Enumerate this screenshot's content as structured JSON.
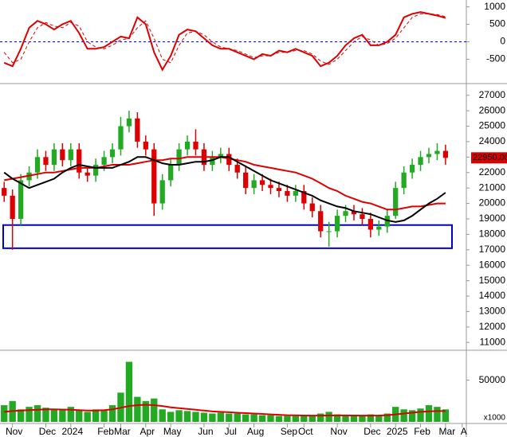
{
  "chart_data": [
    {
      "type": "line",
      "ylim": [
        -1150,
        1150
      ],
      "yticks": [
        1000,
        500,
        0,
        -500
      ],
      "zero_line": {
        "value": 0,
        "color": "#0000ff"
      },
      "series": [
        {
          "color": "#dd0000",
          "style": "solid",
          "values": [
            -600,
            -700,
            -200,
            400,
            600,
            500,
            350,
            500,
            600,
            250,
            -200,
            -200,
            -150,
            0,
            150,
            100,
            700,
            500,
            -300,
            -800,
            -400,
            200,
            350,
            300,
            100,
            -100,
            -200,
            -200,
            -300,
            -400,
            -500,
            -350,
            -400,
            -250,
            -300,
            -200,
            -300,
            -400,
            -700,
            -600,
            -400,
            -100,
            100,
            200,
            -100,
            -100,
            0,
            200,
            700,
            800,
            850,
            800,
            750,
            680,
            null,
            null
          ]
        },
        {
          "color": "#dd0000",
          "style": "dashed",
          "values": [
            -300,
            -600,
            -500,
            0,
            400,
            550,
            450,
            400,
            550,
            450,
            0,
            -150,
            -200,
            -100,
            50,
            100,
            400,
            600,
            100,
            -500,
            -600,
            -100,
            250,
            300,
            200,
            0,
            -150,
            -200,
            -250,
            -350,
            -450,
            -400,
            -400,
            -300,
            -300,
            -250,
            -250,
            -350,
            -550,
            -650,
            -500,
            -250,
            0,
            150,
            50,
            -100,
            -50,
            100,
            400,
            700,
            800,
            800,
            780,
            720,
            null,
            null
          ]
        }
      ]
    },
    {
      "type": "candlestick",
      "ylim": [
        10600,
        27500
      ],
      "yticks": [
        27000,
        26000,
        25000,
        24000,
        23000,
        22000,
        21000,
        20000,
        19000,
        18000,
        17000,
        16000,
        15000,
        14000,
        13000,
        12000,
        11000
      ],
      "up_color": "#22aa22",
      "down_color": "#dd0000",
      "open": [
        21000,
        20500,
        19000,
        21500,
        22000,
        23000,
        22500,
        23500,
        22800,
        23500,
        22000,
        21800,
        22500,
        23000,
        23500,
        25000,
        25500,
        24000,
        23500,
        20000,
        21500,
        22500,
        23500,
        24000,
        23500,
        22500,
        23000,
        23200,
        22500,
        22000,
        21000,
        21500,
        21200,
        21000,
        20800,
        20500,
        20800,
        20000,
        19500,
        18200,
        18200,
        19200,
        19500,
        19300,
        19000,
        18300,
        18500,
        19200,
        21000,
        22000,
        22500,
        23000,
        23200,
        23400,
        null,
        null
      ],
      "high": [
        21400,
        20900,
        21900,
        22400,
        23500,
        23400,
        23900,
        23900,
        23900,
        23900,
        22400,
        22900,
        23400,
        23900,
        25600,
        26000,
        25900,
        24400,
        23900,
        21900,
        22900,
        23900,
        24400,
        24800,
        23900,
        23400,
        23600,
        23600,
        22900,
        22400,
        21900,
        21900,
        21600,
        21400,
        21200,
        21200,
        21200,
        20400,
        19900,
        18800,
        19600,
        19900,
        19900,
        19700,
        19400,
        18900,
        19600,
        21400,
        22400,
        22900,
        23400,
        23600,
        23900,
        23800,
        null,
        null
      ],
      "low": [
        20100,
        17000,
        18600,
        21100,
        21600,
        22100,
        22100,
        22400,
        22400,
        21600,
        21400,
        21400,
        22100,
        22600,
        23100,
        24600,
        23600,
        23100,
        19200,
        19600,
        21100,
        22100,
        23100,
        23100,
        22100,
        22100,
        22600,
        22100,
        21600,
        20600,
        20600,
        20800,
        20600,
        20400,
        20100,
        20100,
        19600,
        19100,
        17800,
        17200,
        17800,
        18800,
        18900,
        18600,
        17800,
        17900,
        18100,
        19000,
        20600,
        21600,
        22100,
        22600,
        22800,
        22500,
        null,
        null
      ],
      "close": [
        20500,
        19000,
        21500,
        22000,
        23000,
        22500,
        23500,
        22800,
        23500,
        22000,
        21800,
        22500,
        23000,
        23500,
        25000,
        25500,
        24000,
        23500,
        20000,
        21500,
        22500,
        23500,
        24000,
        23500,
        22500,
        23000,
        23200,
        22500,
        22000,
        21000,
        21500,
        21200,
        21000,
        20800,
        20500,
        20800,
        20000,
        19500,
        18200,
        18200,
        19200,
        19500,
        19300,
        19000,
        18300,
        18500,
        19200,
        21000,
        22000,
        22500,
        23000,
        23200,
        23400,
        22950,
        null,
        null
      ],
      "series": [
        {
          "color": "#dd0000",
          "values": [
            21500,
            21600,
            21700,
            21800,
            21900,
            22000,
            22000,
            22100,
            22200,
            22300,
            22300,
            22300,
            22400,
            22500,
            22500,
            22500,
            22600,
            22700,
            22800,
            22800,
            22900,
            22900,
            23000,
            23000,
            23000,
            23000,
            23000,
            22900,
            22800,
            22700,
            22500,
            22400,
            22300,
            22200,
            22100,
            22000,
            21800,
            21600,
            21300,
            21000,
            20800,
            20500,
            20300,
            20100,
            20000,
            19800,
            19600,
            19600,
            19700,
            19800,
            19800,
            19900,
            20000,
            20000,
            null,
            null
          ]
        },
        {
          "color": "#000000",
          "values": [
            22000,
            21600,
            21300,
            21000,
            21200,
            21400,
            21600,
            22000,
            22300,
            22500,
            22400,
            22300,
            22300,
            22300,
            22500,
            22700,
            23000,
            23000,
            22800,
            22600,
            22500,
            22500,
            22600,
            22700,
            22700,
            22800,
            23000,
            23000,
            22700,
            22400,
            22100,
            21800,
            21500,
            21300,
            21100,
            20900,
            20700,
            20500,
            20200,
            20000,
            19800,
            19700,
            19500,
            19400,
            19300,
            19100,
            18900,
            18800,
            18900,
            19200,
            19600,
            20000,
            20300,
            20700,
            null,
            null
          ]
        }
      ],
      "box": {
        "low": 17100,
        "high": 18600,
        "color": "#0000cc"
      },
      "last_price": {
        "value": 22950,
        "label": "22950.00",
        "color": "#dd0000"
      }
    },
    {
      "type": "bar",
      "ylim": [
        0,
        83000
      ],
      "yticks": [
        50000
      ],
      "unit_label": "x1000",
      "categories": [
        null,
        "Nov",
        null,
        null,
        null,
        "Dec",
        null,
        null,
        "2024",
        null,
        null,
        null,
        "Feb",
        null,
        "Mar",
        null,
        null,
        "Apr",
        null,
        null,
        "May",
        null,
        null,
        null,
        "Jun",
        null,
        null,
        "Jul",
        null,
        null,
        "Aug",
        null,
        null,
        null,
        "Sep",
        null,
        "Oct",
        null,
        null,
        null,
        "Nov",
        null,
        null,
        null,
        "Dec",
        null,
        null,
        "2025",
        null,
        null,
        "Feb",
        null,
        null,
        "Mar",
        null,
        "A"
      ],
      "color": "#22aa22",
      "values": [
        20000,
        25000,
        15000,
        18000,
        20000,
        17000,
        15000,
        15000,
        18000,
        14000,
        12000,
        15000,
        14000,
        20000,
        35000,
        72000,
        30000,
        25000,
        28000,
        15000,
        12000,
        14000,
        13000,
        12000,
        11000,
        10000,
        11000,
        10000,
        10000,
        9000,
        9000,
        8000,
        8000,
        7000,
        7000,
        7000,
        8000,
        8000,
        10000,
        12000,
        9000,
        8000,
        7000,
        7000,
        9000,
        8000,
        10000,
        18000,
        15000,
        14000,
        16000,
        20000,
        18000,
        15000,
        null,
        null
      ],
      "series": [
        {
          "color": "#dd0000",
          "values": [
            12000,
            13000,
            13500,
            14000,
            14500,
            15000,
            15000,
            14800,
            14500,
            14000,
            13500,
            13500,
            14000,
            15000,
            17000,
            19000,
            20000,
            20500,
            20000,
            19000,
            17500,
            16500,
            15500,
            14500,
            13500,
            12500,
            12000,
            11500,
            11000,
            10500,
            10000,
            9500,
            9000,
            8500,
            8000,
            7800,
            7600,
            7500,
            7500,
            7600,
            7700,
            7700,
            7600,
            7500,
            7500,
            7600,
            8000,
            9000,
            10000,
            11000,
            12000,
            12500,
            13000,
            13000,
            null,
            null
          ]
        }
      ]
    }
  ]
}
